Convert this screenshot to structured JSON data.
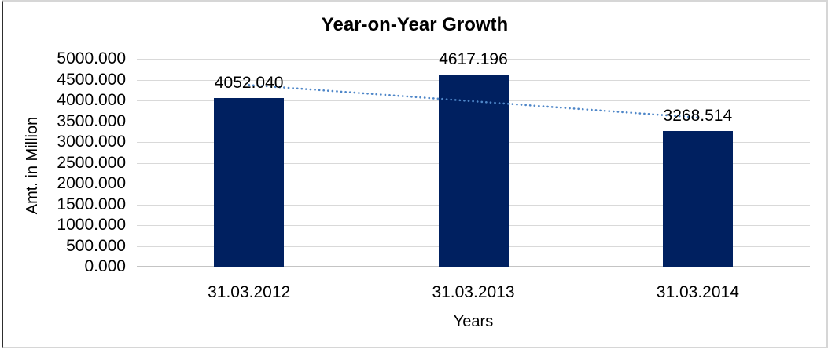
{
  "chart_data": {
    "type": "bar",
    "title": "Year-on-Year Growth",
    "xlabel": "Years",
    "ylabel": "Amt. in Million",
    "categories": [
      "31.03.2012",
      "31.03.2013",
      "31.03.2014"
    ],
    "values": [
      4052.04,
      4617.196,
      3268.514
    ],
    "data_labels": [
      "4052.040",
      "4617.196",
      "3268.514"
    ],
    "ylim": [
      0,
      5000
    ],
    "ytick_step": 500,
    "ytick_labels": [
      "0.000",
      "500.000",
      "1000.000",
      "1500.000",
      "2000.000",
      "2500.000",
      "3000.000",
      "3500.000",
      "4000.000",
      "4500.000",
      "5000.000"
    ],
    "grid": true,
    "legend": "none",
    "trendline": {
      "type": "linear",
      "style": "dotted"
    },
    "colors": {
      "bar": "#002060",
      "trendline": "#4E86C8",
      "gridline": "#D9D9D9",
      "axis_line": "#C4C4C4",
      "text": "#000000",
      "background": "#FFFFFF"
    }
  }
}
